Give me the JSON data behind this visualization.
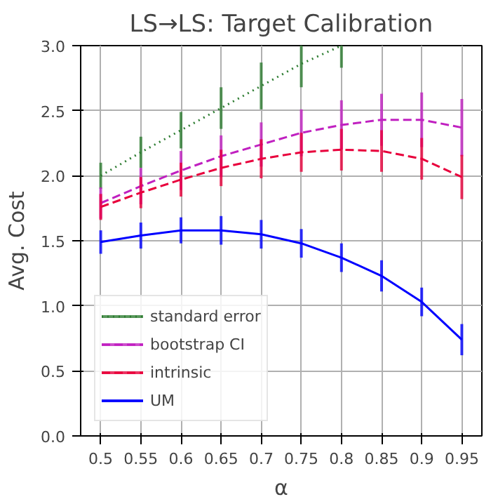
{
  "chart_data": {
    "type": "line",
    "title": "LS→LS: Target Calibration",
    "xlabel": "α",
    "ylabel": "Avg. Cost",
    "x": [
      0.5,
      0.55,
      0.6,
      0.65,
      0.7,
      0.75,
      0.8,
      0.85,
      0.9,
      0.95
    ],
    "series": [
      {
        "name": "standard error",
        "color": "#2e7d32",
        "line_style": "dotted",
        "values": [
          2.0,
          2.18,
          2.35,
          2.52,
          2.69,
          2.86,
          3.0,
          null,
          null,
          null
        ],
        "errors": [
          0.1,
          0.12,
          0.14,
          0.16,
          0.18,
          [
            2.68,
            3.0
          ],
          [
            2.83,
            3.0
          ],
          null,
          null,
          null
        ]
      },
      {
        "name": "bootstrap CI",
        "color": "#c020c0",
        "line_style": "dashed",
        "values": [
          1.79,
          1.92,
          2.04,
          2.15,
          2.24,
          2.33,
          2.39,
          2.43,
          2.43,
          2.37
        ],
        "errors": [
          0.12,
          0.14,
          0.15,
          0.16,
          0.17,
          0.18,
          0.19,
          0.2,
          0.21,
          0.22
        ]
      },
      {
        "name": "intrinsic",
        "color": "#e8003c",
        "line_style": "dashed",
        "values": [
          1.76,
          1.87,
          1.97,
          2.06,
          2.13,
          2.18,
          2.2,
          2.19,
          2.13,
          1.99
        ],
        "errors": [
          0.1,
          0.12,
          0.13,
          0.14,
          0.15,
          0.15,
          0.16,
          0.16,
          0.16,
          0.17
        ]
      },
      {
        "name": "UM",
        "color": "#0000ff",
        "line_style": "solid",
        "values": [
          1.49,
          1.54,
          1.58,
          1.58,
          1.55,
          1.48,
          1.37,
          1.23,
          1.03,
          0.74
        ],
        "errors": [
          0.09,
          0.1,
          0.1,
          0.11,
          0.11,
          0.11,
          0.11,
          0.12,
          0.11,
          0.12
        ]
      }
    ],
    "xlim": [
      0.475,
      0.975
    ],
    "xticks": [
      0.5,
      0.55,
      0.6,
      0.65,
      0.7,
      0.75,
      0.8,
      0.85,
      0.9,
      0.95
    ],
    "ylim": [
      0.0,
      3.0
    ],
    "yticks": [
      {
        "value": 0,
        "label": "0.0"
      },
      0.5,
      {
        "value": 1,
        "label": "1.0"
      },
      1.5,
      {
        "value": 2,
        "label": "2.0"
      },
      2.5,
      {
        "value": 3,
        "label": "3.0"
      }
    ],
    "grid": true,
    "legend": "bottom left",
    "marker": "none"
  }
}
